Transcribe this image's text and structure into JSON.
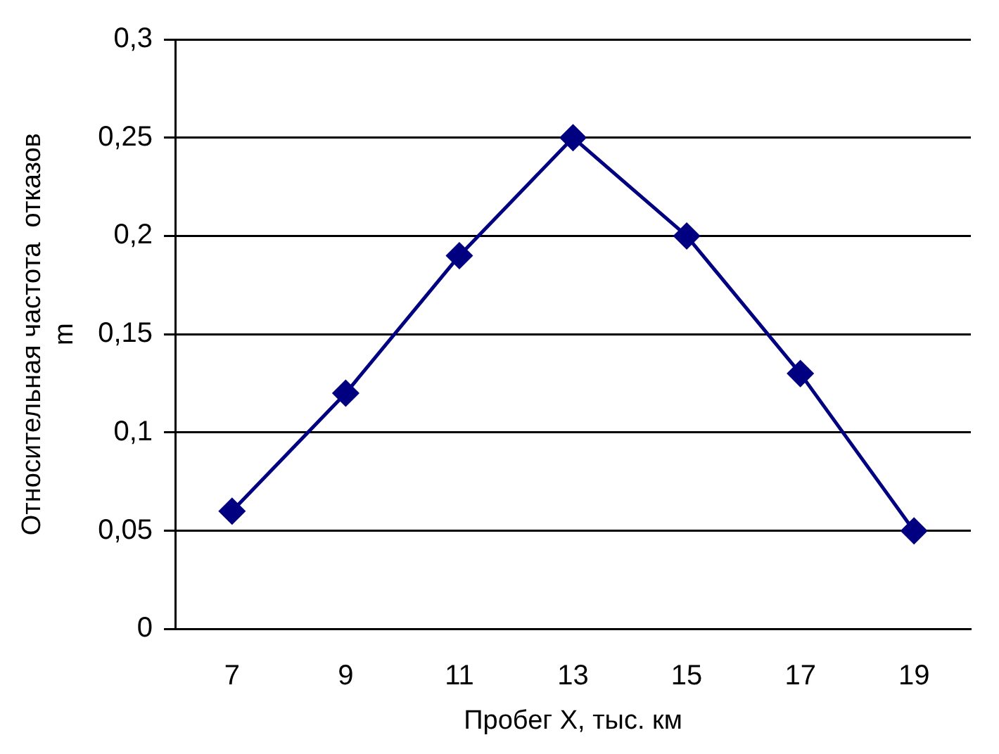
{
  "chart_data": {
    "type": "line",
    "xlabel": "Пробег X, тыс. км",
    "ylabel": "Относительная частота  отказов\nm",
    "categories": [
      "7",
      "9",
      "11",
      "13",
      "15",
      "17",
      "19"
    ],
    "series": [
      {
        "color": "#000080",
        "values": [
          0.06,
          0.12,
          0.19,
          0.25,
          0.2,
          0.13,
          0.05
        ]
      }
    ],
    "ylim": [
      0,
      0.3
    ],
    "yticks": [
      0,
      {
        "value": 0.05,
        "label": "0,05"
      },
      {
        "value": 0.1,
        "label": "0,1"
      },
      {
        "value": 0.15,
        "label": "0,15"
      },
      {
        "value": 0.2,
        "label": "0,2"
      },
      {
        "value": 0.25,
        "label": "0,25"
      },
      {
        "value": 0.3,
        "label": "0,3"
      }
    ],
    "grid": "y",
    "legend": false,
    "marker": "diamond",
    "line_style": "solid"
  }
}
